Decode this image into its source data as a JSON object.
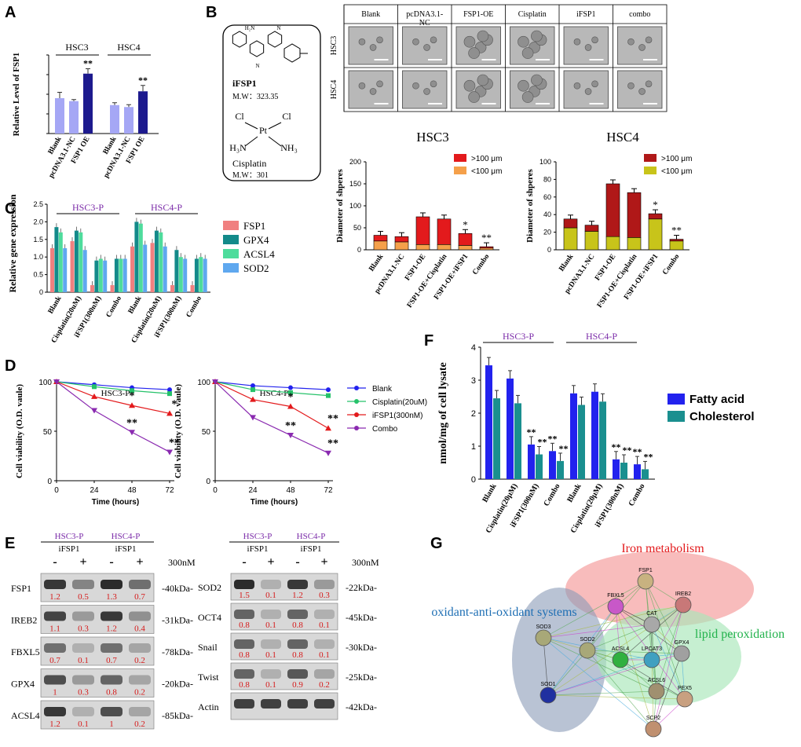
{
  "colors": {
    "lavender": "#a5a7f5",
    "navy": "#1d1a8e",
    "red": "#e31a1c",
    "orange": "#f5a04a",
    "darkred": "#b01818",
    "olive": "#c8c41a",
    "fsp1": "#f08080",
    "gpx4": "#138a8a",
    "acsl4": "#4edc9c",
    "sod2": "#5fa8ef",
    "blue": "#2222ee",
    "teal": "#1a8f8f",
    "purple": "#7a2aa8",
    "blot_red": "#d61a1a"
  },
  "panel_labels": {
    "a": "A",
    "b": "B",
    "c": "C",
    "d": "D",
    "e": "E",
    "f": "F",
    "g": "G"
  },
  "panelA": {
    "ylabel": "Relative Level of FSP1",
    "groups": [
      "HSC3",
      "HSC4"
    ],
    "chart_data": {
      "type": "bar",
      "title": "",
      "ylabel": "Relative Level of FSP1",
      "ylim": [
        0,
        4
      ],
      "categories": [
        "Blank",
        "pcDNA3.1-NC",
        "FSP1 OE",
        "Blank",
        "pcDNA3.1-NC",
        "FSP1 OE"
      ],
      "values": [
        1.8,
        1.65,
        3.05,
        1.45,
        1.35,
        2.15
      ],
      "errors": [
        0.3,
        0.08,
        0.25,
        0.12,
        0.12,
        0.3
      ],
      "sig": [
        "",
        "",
        "**",
        "",
        "",
        "**"
      ]
    }
  },
  "panelB": {
    "conditions": [
      "Blank",
      "pcDNA3.1-\nNC",
      "FSP1-OE",
      "Cisplatin",
      "iFSP1",
      "combo"
    ],
    "rows": [
      "HSC3",
      "HSC4"
    ],
    "struct1": {
      "name": "iFSP1",
      "mw": "M.W：323.35",
      "atoms": {
        "nh2": "H",
        "nh2b": "N",
        "cn1": "N",
        "cn2": "N"
      }
    },
    "struct2": {
      "name": "Cisplatin",
      "mw": "M.W：301",
      "cl1": "Cl",
      "cl2": "Cl",
      "pt": "Pt",
      "nh3a": "H",
      "nh3b": "NH"
    }
  },
  "panelB_charts": [
    {
      "type": "bar",
      "stacked": true,
      "title": "HSC3",
      "ylabel": "Diameter of shperes",
      "ylim": [
        0,
        200
      ],
      "yticks": [
        "0",
        "50",
        "100",
        "150",
        "200"
      ],
      "categories": [
        "Blank",
        "pcDNA3.1-NC",
        "FSP1-OE",
        "FSP1-OE+Cisplatin",
        "FSP1-OE+iFSP1",
        "Combo"
      ],
      "legend": [
        ">100 μm",
        "<100 μm"
      ],
      "series": [
        {
          "name": "<100 μm",
          "values": [
            20,
            18,
            12,
            12,
            10,
            4
          ]
        },
        {
          "name": ">100 μm",
          "values": [
            13,
            12,
            63,
            58,
            27,
            3
          ]
        }
      ],
      "sig": [
        "",
        "",
        "",
        "",
        "*",
        "**"
      ]
    },
    {
      "type": "bar",
      "stacked": true,
      "title": "HSC4",
      "ylabel": "Diameter of shperes",
      "ylim": [
        0,
        100
      ],
      "yticks": [
        "0",
        "20",
        "40",
        "60",
        "80",
        "100"
      ],
      "categories": [
        "Blank",
        "pcDNA3.1-NC",
        "FSP1-OE",
        "FSP1-OE+Cisplatin",
        "FSP1-OE+iFSP1",
        "Combo"
      ],
      "legend": [
        ">100 μm",
        "<100 μm"
      ],
      "series": [
        {
          "name": "<100 μm",
          "values": [
            25,
            21,
            15,
            14,
            35,
            10
          ]
        },
        {
          "name": ">100 μm",
          "values": [
            10,
            7,
            60,
            51,
            6,
            2
          ]
        }
      ],
      "sig": [
        "",
        "",
        "",
        "",
        "*",
        "**"
      ]
    }
  ],
  "panelC": {
    "ylabel": "Relative gene expression",
    "groups": [
      "HSC3-P",
      "HSC4-P"
    ],
    "yticks": [
      "0",
      "0.5",
      "1.0",
      "1.5",
      "2.0",
      "2.5"
    ],
    "legend": [
      "FSP1",
      "GPX4",
      "ACSL4",
      "SOD2"
    ],
    "chart_data": {
      "type": "bar",
      "ylim": [
        0,
        2.5
      ],
      "categories": [
        "Blank",
        "Cisplatin(20uM)",
        "iFSP1(300nM)",
        "Combo",
        "Blank",
        "Cisplatin(20uM)",
        "iFSP1(300nM)",
        "Combo"
      ],
      "series": [
        {
          "name": "FSP1",
          "values": [
            1.25,
            1.45,
            0.2,
            0.2,
            1.3,
            1.4,
            0.2,
            0.2
          ]
        },
        {
          "name": "GPX4",
          "values": [
            1.85,
            1.75,
            0.9,
            0.95,
            2.0,
            1.75,
            1.2,
            0.95
          ]
        },
        {
          "name": "ACSL4",
          "values": [
            1.7,
            1.7,
            0.95,
            0.95,
            1.95,
            1.7,
            1.0,
            1.0
          ]
        },
        {
          "name": "SOD2",
          "values": [
            1.25,
            1.2,
            0.9,
            0.95,
            1.35,
            1.3,
            0.95,
            0.95
          ]
        }
      ]
    }
  },
  "panelD": {
    "xlabel": "Time (hours)",
    "ylabel": "Cell viability (O.D. vaule)",
    "legend": [
      "Blank",
      "Cisplatin(20uM)",
      "iFSP1(300nM)",
      "Combo"
    ],
    "charts": [
      {
        "type": "line",
        "title": "HSC3-P",
        "x": [
          0,
          24,
          48,
          72
        ],
        "ylim": [
          0,
          100
        ],
        "xticks": [
          "0",
          "24",
          "48",
          "72"
        ],
        "yticks": [
          "0",
          "50",
          "100"
        ],
        "series": [
          {
            "name": "Blank",
            "values": [
              100,
              97,
              94,
              92
            ]
          },
          {
            "name": "Cisplatin(20uM)",
            "values": [
              100,
              95,
              91,
              88
            ]
          },
          {
            "name": "iFSP1(300nM)",
            "values": [
              100,
              85,
              76,
              68
            ]
          },
          {
            "name": "Combo",
            "values": [
              100,
              71,
              49,
              29
            ]
          }
        ],
        "annotations": [
          {
            "x": 48,
            "text": "*",
            "series": 2
          },
          {
            "x": 72,
            "text": "*",
            "series": 2
          },
          {
            "x": 48,
            "text": "**",
            "series": 3
          },
          {
            "x": 72,
            "text": "**",
            "series": 3
          }
        ]
      },
      {
        "type": "line",
        "title": "HSC4-P",
        "x": [
          0,
          24,
          48,
          72
        ],
        "ylim": [
          0,
          100
        ],
        "xticks": [
          "0",
          "24",
          "48",
          "72"
        ],
        "yticks": [
          "0",
          "50",
          "100"
        ],
        "series": [
          {
            "name": "Blank",
            "values": [
              100,
              96,
              94,
              92
            ]
          },
          {
            "name": "Cisplatin(20uM)",
            "values": [
              100,
              92,
              89,
              86
            ]
          },
          {
            "name": "iFSP1(300nM)",
            "values": [
              100,
              82,
              75,
              53
            ]
          },
          {
            "name": "Combo",
            "values": [
              100,
              64,
              46,
              28
            ]
          }
        ],
        "annotations": [
          {
            "x": 48,
            "text": "*",
            "series": 2
          },
          {
            "x": 72,
            "text": "**",
            "series": 2
          },
          {
            "x": 48,
            "text": "**",
            "series": 3
          },
          {
            "x": 72,
            "text": "**",
            "series": 3
          }
        ]
      }
    ]
  },
  "panelE": {
    "left": {
      "groups": [
        "HSC3-P",
        "HSC4-P"
      ],
      "treat": "iFSP1",
      "signs": [
        "-",
        "+",
        "-",
        "+"
      ],
      "dose": "300nM",
      "rows": [
        {
          "name": "FSP1",
          "kda": "-40kDa-",
          "vals": [
            "1.2",
            "0.5",
            "1.3",
            "0.7"
          ]
        },
        {
          "name": "IREB2",
          "kda": "-31kDa-",
          "vals": [
            "1.1",
            "0.3",
            "1.2",
            "0.4"
          ]
        },
        {
          "name": "FBXL5",
          "kda": "-78kDa-",
          "vals": [
            "0.7",
            "0.1",
            "0.7",
            "0.2"
          ]
        },
        {
          "name": "GPX4",
          "kda": "-20kDa-",
          "vals": [
            "1",
            "0.3",
            "0.8",
            "0.2"
          ]
        },
        {
          "name": "ACSL4",
          "kda": "-85kDa-",
          "vals": [
            "1.2",
            "0.1",
            "1",
            "0.2"
          ]
        }
      ]
    },
    "right": {
      "groups": [
        "HSC3-P",
        "HSC4-P"
      ],
      "treat": "iFSP1",
      "signs": [
        "-",
        "+",
        "-",
        "+"
      ],
      "dose": "300nM",
      "rows": [
        {
          "name": "SOD2",
          "kda": "-22kDa-",
          "vals": [
            "1.5",
            "0.1",
            "1.2",
            "0.3"
          ]
        },
        {
          "name": "OCT4",
          "kda": "-45kDa-",
          "vals": [
            "0.8",
            "0.1",
            "0.8",
            "0.1"
          ]
        },
        {
          "name": "Snail",
          "kda": "-30kDa-",
          "vals": [
            "0.8",
            "0.1",
            "0.8",
            "0.1"
          ]
        },
        {
          "name": "Twist",
          "kda": "-25kDa-",
          "vals": [
            "0.8",
            "0.1",
            "0.9",
            "0.2"
          ]
        },
        {
          "name": "Actin",
          "kda": "-42kDa-",
          "vals": [
            "",
            "",
            "",
            ""
          ]
        }
      ]
    }
  },
  "panelF": {
    "ylabel": "nmol/mg of cell lysate",
    "groups": [
      "HSC3-P",
      "HSC4-P"
    ],
    "yticks": [
      "0",
      "1",
      "2",
      "3",
      "4"
    ],
    "legend": [
      "Fatty acid",
      "Cholesterol"
    ],
    "chart_data": {
      "type": "bar",
      "ylim": [
        0,
        4
      ],
      "categories": [
        "Blank",
        "Cisplatin(20μM)",
        "iFSP1(300nM)",
        "Combo",
        "Blank",
        "Cisplatin(20μM)",
        "iFSP1(300nM)",
        "Combo"
      ],
      "series": [
        {
          "name": "Fatty acid",
          "values": [
            3.45,
            3.05,
            1.05,
            0.85,
            2.6,
            2.65,
            0.6,
            0.45
          ]
        },
        {
          "name": "Cholesterol",
          "values": [
            2.45,
            2.3,
            0.75,
            0.55,
            2.25,
            2.35,
            0.5,
            0.3
          ]
        }
      ],
      "sig_fa": [
        "",
        "",
        "**",
        "**",
        "",
        "",
        "**",
        "**"
      ],
      "sig_ch": [
        "",
        "",
        "**",
        "**",
        "",
        "",
        "**",
        "**"
      ]
    }
  },
  "panelG": {
    "labels": {
      "iron": "Iron metabolism",
      "oxidant": "oxidant-anti-oxidant systems",
      "lipid": "lipid peroxidation"
    },
    "nodes": [
      "FSP1",
      "IREB2",
      "FBXL5",
      "CAT",
      "SOD3",
      "SOD2",
      "ACSL4",
      "LPCAT3",
      "GPX4",
      "SOD1",
      "ACSL6",
      "PEX5",
      "SCP2"
    ]
  }
}
